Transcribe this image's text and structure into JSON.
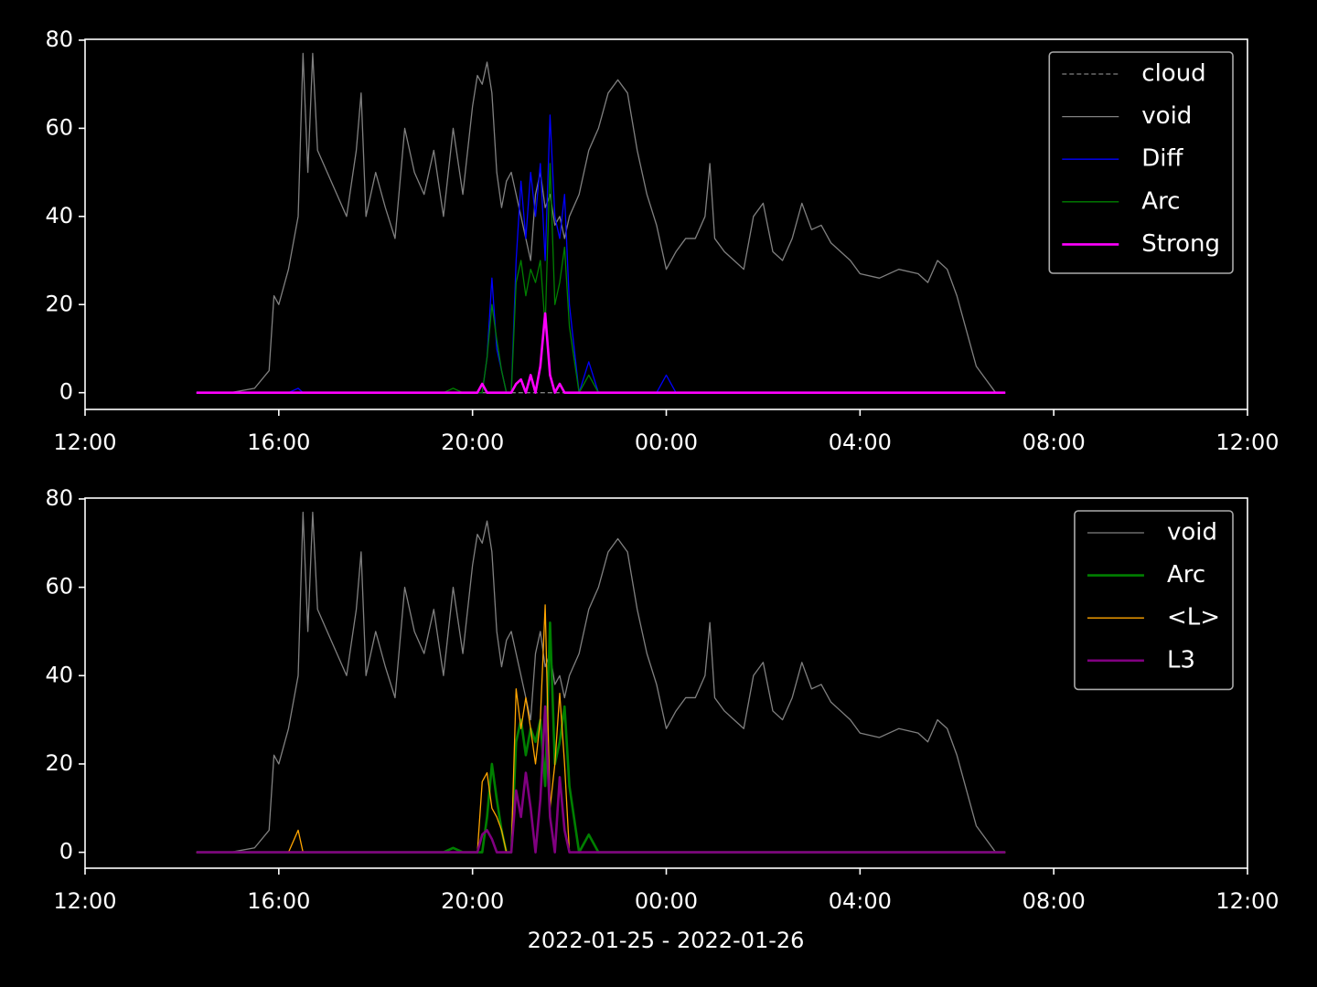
{
  "chart_data": [
    {
      "type": "line",
      "x": [
        14.3,
        15.0,
        15.5,
        15.8,
        15.9,
        16.0,
        16.2,
        16.4,
        16.5,
        16.6,
        16.7,
        16.8,
        17.0,
        17.2,
        17.4,
        17.6,
        17.7,
        17.8,
        18.0,
        18.2,
        18.4,
        18.6,
        18.8,
        19.0,
        19.2,
        19.4,
        19.6,
        19.8,
        20.0,
        20.1,
        20.2,
        20.3,
        20.4,
        20.5,
        20.6,
        20.7,
        20.8,
        20.9,
        21.0,
        21.1,
        21.2,
        21.3,
        21.4,
        21.5,
        21.6,
        21.7,
        21.8,
        21.9,
        22.0,
        22.2,
        22.4,
        22.6,
        22.8,
        23.0,
        23.2,
        23.4,
        23.6,
        23.8,
        24.0,
        24.2,
        24.4,
        24.6,
        24.8,
        24.9,
        25.0,
        25.2,
        25.4,
        25.6,
        25.8,
        26.0,
        26.2,
        26.4,
        26.6,
        26.8,
        27.0,
        27.2,
        27.4,
        27.6,
        27.8,
        28.0,
        28.4,
        28.8,
        29.2,
        29.4,
        29.6,
        29.8,
        30.0,
        30.2,
        30.4,
        30.6,
        30.8,
        31.0
      ],
      "xlim": [
        12,
        36
      ],
      "xticks": [
        {
          "value": 12,
          "label": "12:00"
        },
        {
          "value": 16,
          "label": "16:00"
        },
        {
          "value": 20,
          "label": "20:00"
        },
        {
          "value": 24,
          "label": "00:00"
        },
        {
          "value": 28,
          "label": "04:00"
        },
        {
          "value": 32,
          "label": "08:00"
        },
        {
          "value": 36,
          "label": "12:00"
        }
      ],
      "ylim": [
        -3.8,
        80.2
      ],
      "yticks": [
        0,
        20,
        40,
        60,
        80
      ],
      "grid": false,
      "legend": "upper right",
      "series": [
        {
          "name": "cloud",
          "color": "#808080",
          "linewidth": 1.3,
          "linestyle": "dashed",
          "values": [
            0,
            0,
            0,
            0,
            0,
            0,
            0,
            0,
            0,
            0,
            0,
            0,
            0,
            0,
            0,
            0,
            0,
            0,
            0,
            0,
            0,
            0,
            0,
            0,
            0,
            0,
            0,
            0,
            0,
            0,
            0,
            0,
            0,
            0,
            0,
            0,
            0,
            0,
            0,
            0,
            0,
            0,
            0,
            0,
            0,
            0,
            0,
            0,
            0,
            0,
            0,
            0,
            0,
            0,
            0,
            0,
            0,
            0,
            0,
            0,
            0,
            0,
            0,
            0,
            0,
            0,
            0,
            0,
            0,
            0,
            0,
            0,
            0,
            0,
            0,
            0,
            0,
            0,
            0,
            0,
            0,
            0,
            0,
            0,
            0,
            0,
            0,
            0,
            0,
            0,
            0,
            0
          ]
        },
        {
          "name": "void",
          "color": "#808080",
          "linewidth": 1.3,
          "linestyle": "solid",
          "values": [
            0,
            0,
            1,
            5,
            22,
            20,
            28,
            40,
            77,
            50,
            77,
            55,
            50,
            45,
            40,
            55,
            68,
            40,
            50,
            42,
            35,
            60,
            50,
            45,
            55,
            40,
            60,
            45,
            65,
            72,
            70,
            75,
            68,
            50,
            42,
            48,
            50,
            45,
            40,
            35,
            30,
            45,
            50,
            42,
            45,
            38,
            40,
            35,
            40,
            45,
            55,
            60,
            68,
            71,
            68,
            55,
            45,
            38,
            28,
            32,
            35,
            35,
            40,
            52,
            35,
            32,
            30,
            28,
            40,
            43,
            32,
            30,
            35,
            43,
            37,
            38,
            34,
            32,
            30,
            27,
            26,
            28,
            27,
            25,
            30,
            28,
            22,
            14,
            6,
            3,
            0,
            0
          ]
        },
        {
          "name": "Diff",
          "color": "#0000ff",
          "linewidth": 1.3,
          "linestyle": "solid",
          "values": [
            0,
            0,
            0,
            0,
            0,
            0,
            0,
            1,
            0,
            0,
            0,
            0,
            0,
            0,
            0,
            0,
            0,
            0,
            0,
            0,
            0,
            0,
            0,
            0,
            0,
            0,
            0,
            0,
            0,
            0,
            0,
            8,
            26,
            10,
            5,
            0,
            0,
            30,
            48,
            35,
            50,
            40,
            52,
            30,
            63,
            40,
            35,
            45,
            20,
            0,
            7,
            0,
            0,
            0,
            0,
            0,
            0,
            0,
            4,
            0,
            0,
            0,
            0,
            0,
            0,
            0,
            0,
            0,
            0,
            0,
            0,
            0,
            0,
            0,
            0,
            0,
            0,
            0,
            0,
            0,
            0,
            0,
            0,
            0,
            0,
            0,
            0,
            0,
            0,
            0,
            0,
            0
          ]
        },
        {
          "name": "Arc",
          "color": "#008000",
          "linewidth": 1.3,
          "linestyle": "solid",
          "values": [
            0,
            0,
            0,
            0,
            0,
            0,
            0,
            0,
            0,
            0,
            0,
            0,
            0,
            0,
            0,
            0,
            0,
            0,
            0,
            0,
            0,
            0,
            0,
            0,
            0,
            0,
            1,
            0,
            0,
            0,
            0,
            8,
            20,
            12,
            5,
            0,
            0,
            25,
            30,
            22,
            28,
            25,
            30,
            15,
            52,
            20,
            25,
            33,
            15,
            0,
            4,
            0,
            0,
            0,
            0,
            0,
            0,
            0,
            0,
            0,
            0,
            0,
            0,
            0,
            0,
            0,
            0,
            0,
            0,
            0,
            0,
            0,
            0,
            0,
            0,
            0,
            0,
            0,
            0,
            0,
            0,
            0,
            0,
            0,
            0,
            0,
            0,
            0,
            0,
            0,
            0,
            0
          ]
        },
        {
          "name": "Strong",
          "color": "#ff00ff",
          "linewidth": 2.6,
          "linestyle": "solid",
          "values": [
            0,
            0,
            0,
            0,
            0,
            0,
            0,
            0,
            0,
            0,
            0,
            0,
            0,
            0,
            0,
            0,
            0,
            0,
            0,
            0,
            0,
            0,
            0,
            0,
            0,
            0,
            0,
            0,
            0,
            0,
            2,
            0,
            0,
            0,
            0,
            0,
            0,
            2,
            3,
            0,
            4,
            0,
            6,
            18,
            4,
            0,
            2,
            0,
            0,
            0,
            0,
            0,
            0,
            0,
            0,
            0,
            0,
            0,
            0,
            0,
            0,
            0,
            0,
            0,
            0,
            0,
            0,
            0,
            0,
            0,
            0,
            0,
            0,
            0,
            0,
            0,
            0,
            0,
            0,
            0,
            0,
            0,
            0,
            0,
            0,
            0,
            0,
            0,
            0,
            0,
            0,
            0
          ]
        }
      ]
    },
    {
      "type": "line",
      "xlabel": "2022-01-25 - 2022-01-26",
      "x": [
        14.3,
        15.0,
        15.5,
        15.8,
        15.9,
        16.0,
        16.2,
        16.4,
        16.5,
        16.6,
        16.7,
        16.8,
        17.0,
        17.2,
        17.4,
        17.6,
        17.7,
        17.8,
        18.0,
        18.2,
        18.4,
        18.6,
        18.8,
        19.0,
        19.2,
        19.4,
        19.6,
        19.8,
        20.0,
        20.1,
        20.2,
        20.3,
        20.4,
        20.5,
        20.6,
        20.7,
        20.8,
        20.9,
        21.0,
        21.1,
        21.2,
        21.3,
        21.4,
        21.5,
        21.6,
        21.7,
        21.8,
        21.9,
        22.0,
        22.2,
        22.4,
        22.6,
        22.8,
        23.0,
        23.2,
        23.4,
        23.6,
        23.8,
        24.0,
        24.2,
        24.4,
        24.6,
        24.8,
        24.9,
        25.0,
        25.2,
        25.4,
        25.6,
        25.8,
        26.0,
        26.2,
        26.4,
        26.6,
        26.8,
        27.0,
        27.2,
        27.4,
        27.6,
        27.8,
        28.0,
        28.4,
        28.8,
        29.2,
        29.4,
        29.6,
        29.8,
        30.0,
        30.2,
        30.4,
        30.6,
        30.8,
        31.0
      ],
      "xlim": [
        12,
        36
      ],
      "xticks": [
        {
          "value": 12,
          "label": "12:00"
        },
        {
          "value": 16,
          "label": "16:00"
        },
        {
          "value": 20,
          "label": "20:00"
        },
        {
          "value": 24,
          "label": "00:00"
        },
        {
          "value": 28,
          "label": "04:00"
        },
        {
          "value": 32,
          "label": "08:00"
        },
        {
          "value": 36,
          "label": "12:00"
        }
      ],
      "ylim": [
        -3.6,
        80.2
      ],
      "yticks": [
        0,
        20,
        40,
        60,
        80
      ],
      "grid": false,
      "legend": "upper right",
      "series": [
        {
          "name": "void",
          "color": "#808080",
          "linewidth": 1.3,
          "linestyle": "solid",
          "values": [
            0,
            0,
            1,
            5,
            22,
            20,
            28,
            40,
            77,
            50,
            77,
            55,
            50,
            45,
            40,
            55,
            68,
            40,
            50,
            42,
            35,
            60,
            50,
            45,
            55,
            40,
            60,
            45,
            65,
            72,
            70,
            75,
            68,
            50,
            42,
            48,
            50,
            45,
            40,
            35,
            30,
            45,
            50,
            42,
            45,
            38,
            40,
            35,
            40,
            45,
            55,
            60,
            68,
            71,
            68,
            55,
            45,
            38,
            28,
            32,
            35,
            35,
            40,
            52,
            35,
            32,
            30,
            28,
            40,
            43,
            32,
            30,
            35,
            43,
            37,
            38,
            34,
            32,
            30,
            27,
            26,
            28,
            27,
            25,
            30,
            28,
            22,
            14,
            6,
            3,
            0,
            0
          ]
        },
        {
          "name": "Arc",
          "color": "#008000",
          "linewidth": 2.6,
          "linestyle": "solid",
          "values": [
            0,
            0,
            0,
            0,
            0,
            0,
            0,
            0,
            0,
            0,
            0,
            0,
            0,
            0,
            0,
            0,
            0,
            0,
            0,
            0,
            0,
            0,
            0,
            0,
            0,
            0,
            1,
            0,
            0,
            0,
            0,
            8,
            20,
            12,
            5,
            0,
            0,
            25,
            30,
            22,
            28,
            25,
            30,
            15,
            52,
            20,
            25,
            33,
            15,
            0,
            4,
            0,
            0,
            0,
            0,
            0,
            0,
            0,
            0,
            0,
            0,
            0,
            0,
            0,
            0,
            0,
            0,
            0,
            0,
            0,
            0,
            0,
            0,
            0,
            0,
            0,
            0,
            0,
            0,
            0,
            0,
            0,
            0,
            0,
            0,
            0,
            0,
            0,
            0,
            0,
            0,
            0
          ]
        },
        {
          "name": "<L>",
          "color": "#ffa500",
          "linewidth": 1.3,
          "linestyle": "solid",
          "values": [
            0,
            0,
            0,
            0,
            0,
            0,
            0,
            5,
            0,
            0,
            0,
            0,
            0,
            0,
            0,
            0,
            0,
            0,
            0,
            0,
            0,
            0,
            0,
            0,
            0,
            0,
            0,
            0,
            0,
            0,
            16,
            18,
            10,
            8,
            5,
            0,
            0,
            37,
            28,
            35,
            28,
            20,
            30,
            56,
            10,
            20,
            36,
            20,
            0,
            0,
            0,
            0,
            0,
            0,
            0,
            0,
            0,
            0,
            0,
            0,
            0,
            0,
            0,
            0,
            0,
            0,
            0,
            0,
            0,
            0,
            0,
            0,
            0,
            0,
            0,
            0,
            0,
            0,
            0,
            0,
            0,
            0,
            0,
            0,
            0,
            0,
            0,
            0,
            0,
            0,
            0,
            0
          ]
        },
        {
          "name": "L3",
          "color": "#800080",
          "linewidth": 2.6,
          "linestyle": "solid",
          "values": [
            0,
            0,
            0,
            0,
            0,
            0,
            0,
            0,
            0,
            0,
            0,
            0,
            0,
            0,
            0,
            0,
            0,
            0,
            0,
            0,
            0,
            0,
            0,
            0,
            0,
            0,
            0,
            0,
            0,
            0,
            4,
            5,
            3,
            0,
            0,
            0,
            0,
            14,
            8,
            18,
            10,
            0,
            12,
            33,
            8,
            0,
            17,
            5,
            0,
            0,
            0,
            0,
            0,
            0,
            0,
            0,
            0,
            0,
            0,
            0,
            0,
            0,
            0,
            0,
            0,
            0,
            0,
            0,
            0,
            0,
            0,
            0,
            0,
            0,
            0,
            0,
            0,
            0,
            0,
            0,
            0,
            0,
            0,
            0,
            0,
            0,
            0,
            0,
            0,
            0,
            0,
            0
          ]
        }
      ]
    }
  ]
}
